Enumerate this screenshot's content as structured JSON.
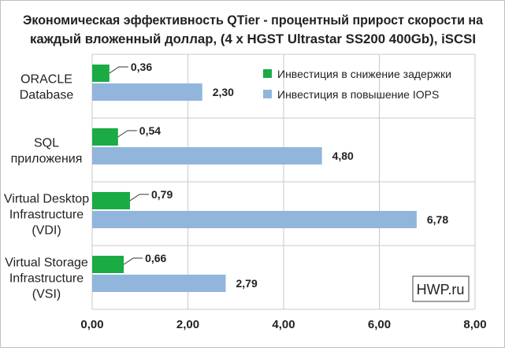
{
  "chart_data": {
    "type": "bar",
    "orientation": "horizontal",
    "title_lines": [
      "Экономическая эффективность QTier - процентный прирост скорости на",
      "каждый вложенный доллар, (4 x HGST Ultrastar SS200 400Gb), iSCSI"
    ],
    "categories": [
      [
        "ORACLE",
        "Database"
      ],
      [
        "SQL",
        "приложения"
      ],
      [
        "Virtual Desktop",
        "Infrastructure",
        "(VDI)"
      ],
      [
        "Virtual Storage",
        "Infrastructure",
        "(VSI)"
      ]
    ],
    "series": [
      {
        "name": "Инвестиция в снижение задержки",
        "color": "#1aab45",
        "values": [
          0.36,
          0.54,
          0.79,
          0.66
        ],
        "labels": [
          "0,36",
          "0,54",
          "0,79",
          "0,66"
        ]
      },
      {
        "name": "Инвестиция в повышение IOPS",
        "color": "#92b5dc",
        "values": [
          2.3,
          4.8,
          6.78,
          2.79
        ],
        "labels": [
          "2,30",
          "4,80",
          "6,78",
          "2,79"
        ]
      }
    ],
    "xlim": [
      0,
      8
    ],
    "xticks": [
      0,
      2,
      4,
      6,
      8
    ],
    "xtick_labels": [
      "0,00",
      "2,00",
      "4,00",
      "6,00",
      "8,00"
    ],
    "grid": true,
    "legend_position": "top-right",
    "watermark": "HWP.ru"
  },
  "colors": {
    "grid": "#c8c8c8",
    "text": "#222222",
    "leader": "#333333"
  }
}
